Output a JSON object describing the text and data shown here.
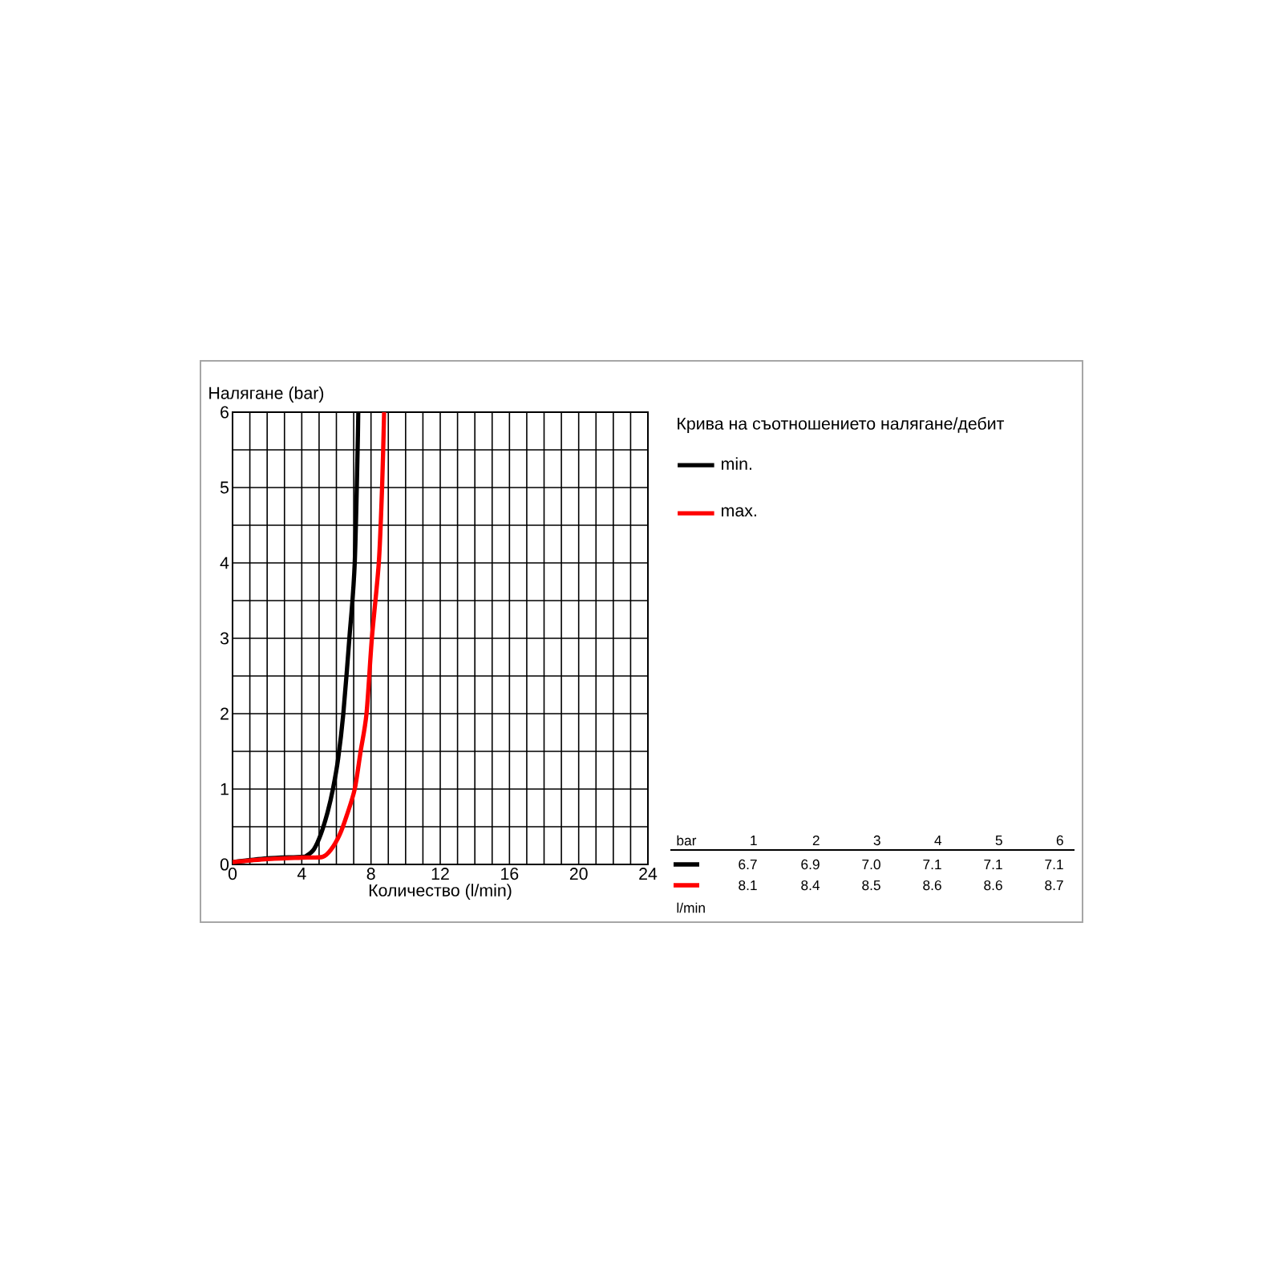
{
  "chart_data": {
    "type": "line",
    "xlabel": "Количество (l/min)",
    "ylabel": "Налягане (bar)",
    "legend_title": "Крива на съотношението налягане/дебит",
    "legend": "right",
    "grid": true,
    "line_style": "solid",
    "marker": "none",
    "xlim": [
      0,
      24
    ],
    "xticks": [
      0,
      4,
      8,
      12,
      16,
      20,
      24
    ],
    "ylim": [
      0,
      6
    ],
    "yticks": [
      0,
      1,
      2,
      3,
      4,
      5,
      6
    ],
    "series": [
      {
        "name": "min.",
        "color": "#000000",
        "x": [
          0,
          2,
          4,
          4.3,
          4.7,
          5.1,
          5.5,
          5.8,
          6.1,
          6.4,
          6.75,
          7.06,
          7.27
        ],
        "values": [
          0.03,
          0.08,
          0.1,
          0.12,
          0.2,
          0.4,
          0.7,
          1,
          1.4,
          2,
          3,
          4,
          6
        ]
      },
      {
        "name": "max.",
        "color": "#ff0000",
        "x": [
          0,
          2,
          4,
          5.2,
          5.7,
          6.2,
          6.6,
          7.06,
          7.4,
          7.74,
          8.05,
          8.45,
          8.64,
          8.76
        ],
        "values": [
          0.03,
          0.07,
          0.09,
          0.1,
          0.2,
          0.4,
          0.65,
          1,
          1.5,
          2,
          3,
          4,
          5,
          6
        ]
      }
    ],
    "annotations": [
      "bar",
      "1",
      "2",
      "3",
      "4",
      "5",
      "6",
      "6.7",
      "6.9",
      "7.0",
      "7.1",
      "7.1",
      "7.1",
      "8.1",
      "8.4",
      "8.5",
      "8.6",
      "8.6",
      "8.7",
      "l/min"
    ]
  }
}
